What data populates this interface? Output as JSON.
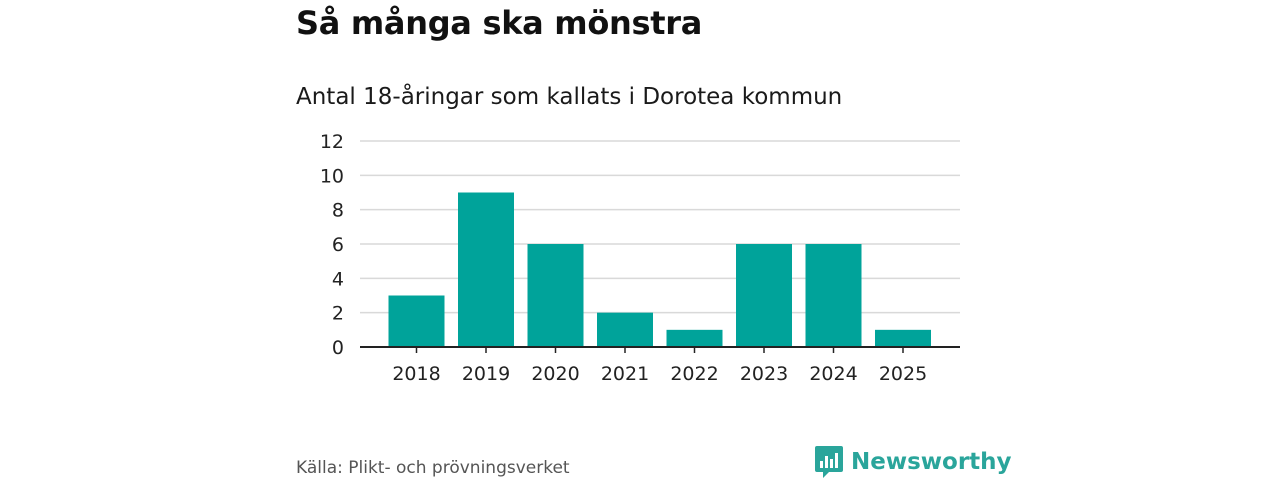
{
  "header": {
    "title": "Så många ska mönstra",
    "subtitle": "Antal 18-åringar som kallats i Dorotea kommun"
  },
  "footer": {
    "source": "Källa: Plikt- och prövningsverket",
    "brand": "Newsworthy",
    "brand_icon": "newsworthy-logo-icon"
  },
  "colors": {
    "bar": "#00a39a",
    "brand": "#2aa59b",
    "grid": "#d9d9d9",
    "axis": "#222222"
  },
  "chart_data": {
    "type": "bar",
    "categories": [
      "2018",
      "2019",
      "2020",
      "2021",
      "2022",
      "2023",
      "2024",
      "2025"
    ],
    "values": [
      3,
      9,
      6,
      2,
      1,
      6,
      6,
      1
    ],
    "ylim": [
      0,
      12
    ],
    "yticks": [
      0,
      2,
      4,
      6,
      8,
      10,
      12
    ],
    "grid": true,
    "xlabel": "",
    "ylabel": ""
  }
}
